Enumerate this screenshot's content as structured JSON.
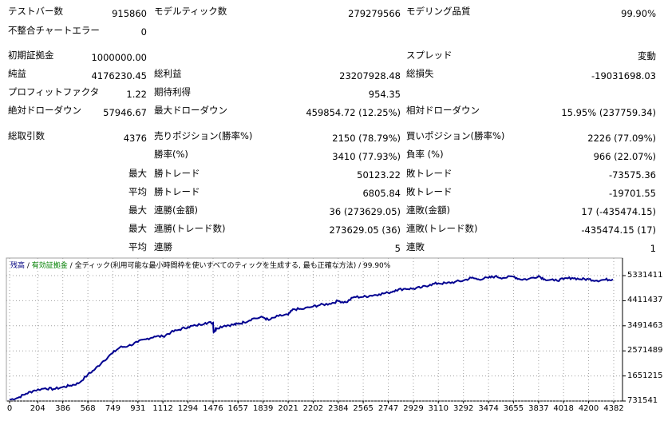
{
  "report": {
    "bars_label": "テストバー数",
    "bars_value": "915860",
    "ticks_label": "モデルティック数",
    "ticks_value": "279279566",
    "quality_label": "モデリング品質",
    "quality_value": "99.90%",
    "mismatch_label": "不整合チャートエラー",
    "mismatch_value": "0",
    "deposit_label": "初期証拠金",
    "deposit_value": "1000000.00",
    "spread_label": "スプレッド",
    "spread_value": "変動",
    "net_label": "純益",
    "net_value": "4176230.45",
    "gross_profit_label": "総利益",
    "gross_profit_value": "23207928.48",
    "gross_loss_label": "総損失",
    "gross_loss_value": "-19031698.03",
    "pf_label": "プロフィットファクタ",
    "pf_value": "1.22",
    "expected_label": "期待利得",
    "expected_value": "954.35",
    "abs_dd_label": "絶対ドローダウン",
    "abs_dd_value": "57946.67",
    "max_dd_label": "最大ドローダウン",
    "max_dd_value": "459854.72 (12.25%)",
    "rel_dd_label": "相対ドローダウン",
    "rel_dd_value": "15.95% (237759.34)",
    "trades_label": "総取引数",
    "trades_value": "4376",
    "short_label": "売りポジション(勝率%)",
    "short_value": "2150 (78.79%)",
    "long_label": "買いポジション(勝率%)",
    "long_value": "2226 (77.09%)",
    "win_pct_label": "勝率(%)",
    "win_pct_value": "3410 (77.93%)",
    "loss_pct_label": "負率 (%)",
    "loss_pct_value": "966 (22.07%)",
    "max_label": "最大",
    "avg_label": "平均",
    "largest_win_label": "勝トレード",
    "largest_win_value": "50123.22",
    "largest_loss_label": "敗トレード",
    "largest_loss_value": "-73575.36",
    "avg_win_label": "勝トレード",
    "avg_win_value": "6805.84",
    "avg_loss_label": "敗トレード",
    "avg_loss_value": "-19701.55",
    "max_cw_amount_label": "連勝(金額)",
    "max_cw_amount_value": "36 (273629.05)",
    "max_cl_amount_label": "連敗(金額)",
    "max_cl_amount_value": "17 (-435474.15)",
    "max_cw_count_label": "連勝(トレード数)",
    "max_cw_count_value": "273629.05 (36)",
    "max_cl_count_label": "連敗(トレード数)",
    "max_cl_count_value": "-435474.15 (17)",
    "avg_cw_label": "連勝",
    "avg_cw_value": "5",
    "avg_cl_label": "連敗",
    "avg_cl_value": "1"
  },
  "legend": {
    "balance": "残高",
    "sep1": " / ",
    "equity": "有効証拠金",
    "sep2": " / ",
    "desc": "全ティック(利用可能な最小時間枠を使いすべてのティックを生成する, 最も正確な方法)",
    "sep3": " / ",
    "quality": "99.90%"
  },
  "colors": {
    "line": "#000090",
    "grid": "#a0a0a0",
    "equity_label": "#008000"
  },
  "chart_data": {
    "type": "line",
    "title": "",
    "xlabel": "",
    "ylabel": "",
    "x_ticks": [
      "0",
      "204",
      "386",
      "568",
      "749",
      "931",
      "1112",
      "1294",
      "1476",
      "1657",
      "1839",
      "2021",
      "2202",
      "2384",
      "2565",
      "2747",
      "2929",
      "3110",
      "3292",
      "3474",
      "3655",
      "3837",
      "4018",
      "4200",
      "4382"
    ],
    "y_ticks": [
      "731541",
      "1651215",
      "2571489",
      "3491463",
      "4411437",
      "5331411"
    ],
    "ylim": [
      731541,
      5331411
    ],
    "xlim": [
      0,
      4376
    ],
    "grid": true,
    "series": [
      {
        "x": [
          0,
          60,
          120,
          180,
          260,
          320,
          386,
          440,
          500,
          568,
          620,
          680,
          749,
          800,
          860,
          931,
          990,
          1050,
          1112,
          1170,
          1230,
          1294,
          1350,
          1420,
          1476,
          1480,
          1500,
          1560,
          1620,
          1657,
          1700,
          1760,
          1839,
          1880,
          1950,
          2021,
          2060,
          2120,
          2202,
          2250,
          2320,
          2384,
          2440,
          2500,
          2565,
          2620,
          2680,
          2747,
          2800,
          2870,
          2929,
          2990,
          3050,
          3110,
          3170,
          3230,
          3292,
          3350,
          3400,
          3474,
          3520,
          3580,
          3655,
          3700,
          3760,
          3837,
          3880,
          3950,
          4018,
          4080,
          4140,
          4200,
          4260,
          4320,
          4376
        ],
        "y": [
          780000,
          850000,
          1000000,
          1120000,
          1200000,
          1170000,
          1240000,
          1300000,
          1380000,
          1700000,
          1900000,
          2200000,
          2500000,
          2700000,
          2750000,
          2900000,
          3000000,
          3100000,
          3100000,
          3250000,
          3350000,
          3450000,
          3500000,
          3600000,
          3600000,
          3250000,
          3400000,
          3500000,
          3530000,
          3560000,
          3620000,
          3750000,
          3800000,
          3700000,
          3850000,
          3900000,
          4100000,
          4100000,
          4200000,
          4250000,
          4300000,
          4400000,
          4350000,
          4550000,
          4550000,
          4600000,
          4650000,
          4700000,
          4800000,
          4850000,
          4850000,
          4900000,
          5000000,
          5050000,
          5050000,
          5100000,
          5150000,
          5250000,
          5200000,
          5250000,
          5300000,
          5250000,
          5300000,
          5200000,
          5200000,
          5320000,
          5200000,
          5150000,
          5200000,
          5250000,
          5200000,
          5200000,
          5150000,
          5180000,
          5200000
        ]
      }
    ]
  }
}
